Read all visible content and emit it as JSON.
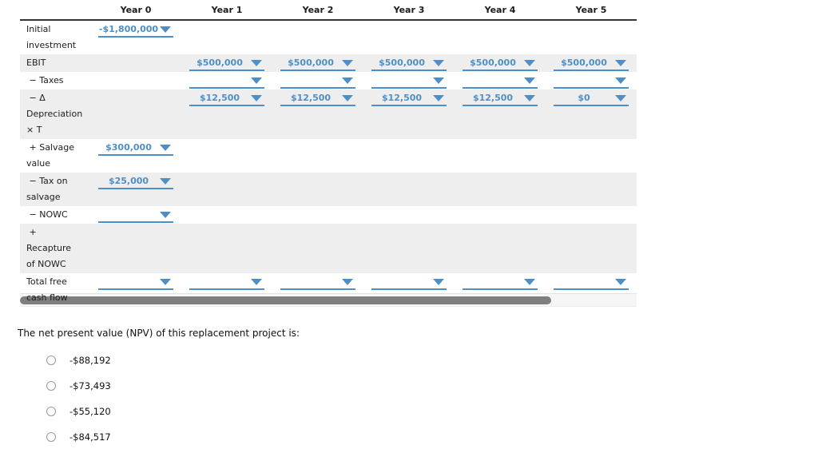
{
  "colors": {
    "accent_blue": "#4e8fc7",
    "row_shade": "#eeeeee",
    "scrollbar_thumb": "#7f7f7f",
    "scrollbar_track": "#f6f6f6",
    "header_border": "#333333"
  },
  "table": {
    "columns": [
      "Year 0",
      "Year 1",
      "Year 2",
      "Year 3",
      "Year 4",
      "Year 5"
    ],
    "rows": [
      {
        "label": "Initial\ninvestment",
        "shaded": false,
        "cells": [
          "-$1,800,000",
          null,
          null,
          null,
          null,
          null
        ]
      },
      {
        "label": "EBIT",
        "shaded": true,
        "cells": [
          null,
          "$500,000",
          "$500,000",
          "$500,000",
          "$500,000",
          "$500,000"
        ]
      },
      {
        "label": " − Taxes",
        "shaded": false,
        "cells": [
          null,
          "",
          "",
          "",
          "",
          ""
        ]
      },
      {
        "label": " − Δ\nDepreciation\n× T",
        "shaded": true,
        "cells": [
          null,
          "$12,500",
          "$12,500",
          "$12,500",
          "$12,500",
          "$0"
        ]
      },
      {
        "label": " + Salvage\nvalue",
        "shaded": false,
        "cells": [
          "$300,000",
          null,
          null,
          null,
          null,
          null
        ]
      },
      {
        "label": " − Tax on\nsalvage",
        "shaded": true,
        "cells": [
          "$25,000",
          null,
          null,
          null,
          null,
          null
        ]
      },
      {
        "label": " − NOWC",
        "shaded": false,
        "cells": [
          "",
          null,
          null,
          null,
          null,
          null
        ]
      },
      {
        "label": " +\nRecapture\nof NOWC",
        "shaded": true,
        "cells": [
          null,
          null,
          null,
          null,
          null,
          null
        ]
      },
      {
        "label": "Total free\ncash flow",
        "shaded": false,
        "cells": [
          "",
          "",
          "",
          "",
          "",
          ""
        ]
      }
    ]
  },
  "question": {
    "text": "The net present value (NPV) of this replacement project is:"
  },
  "options": [
    "-$88,192",
    "-$73,493",
    "-$55,120",
    "-$84,517"
  ]
}
